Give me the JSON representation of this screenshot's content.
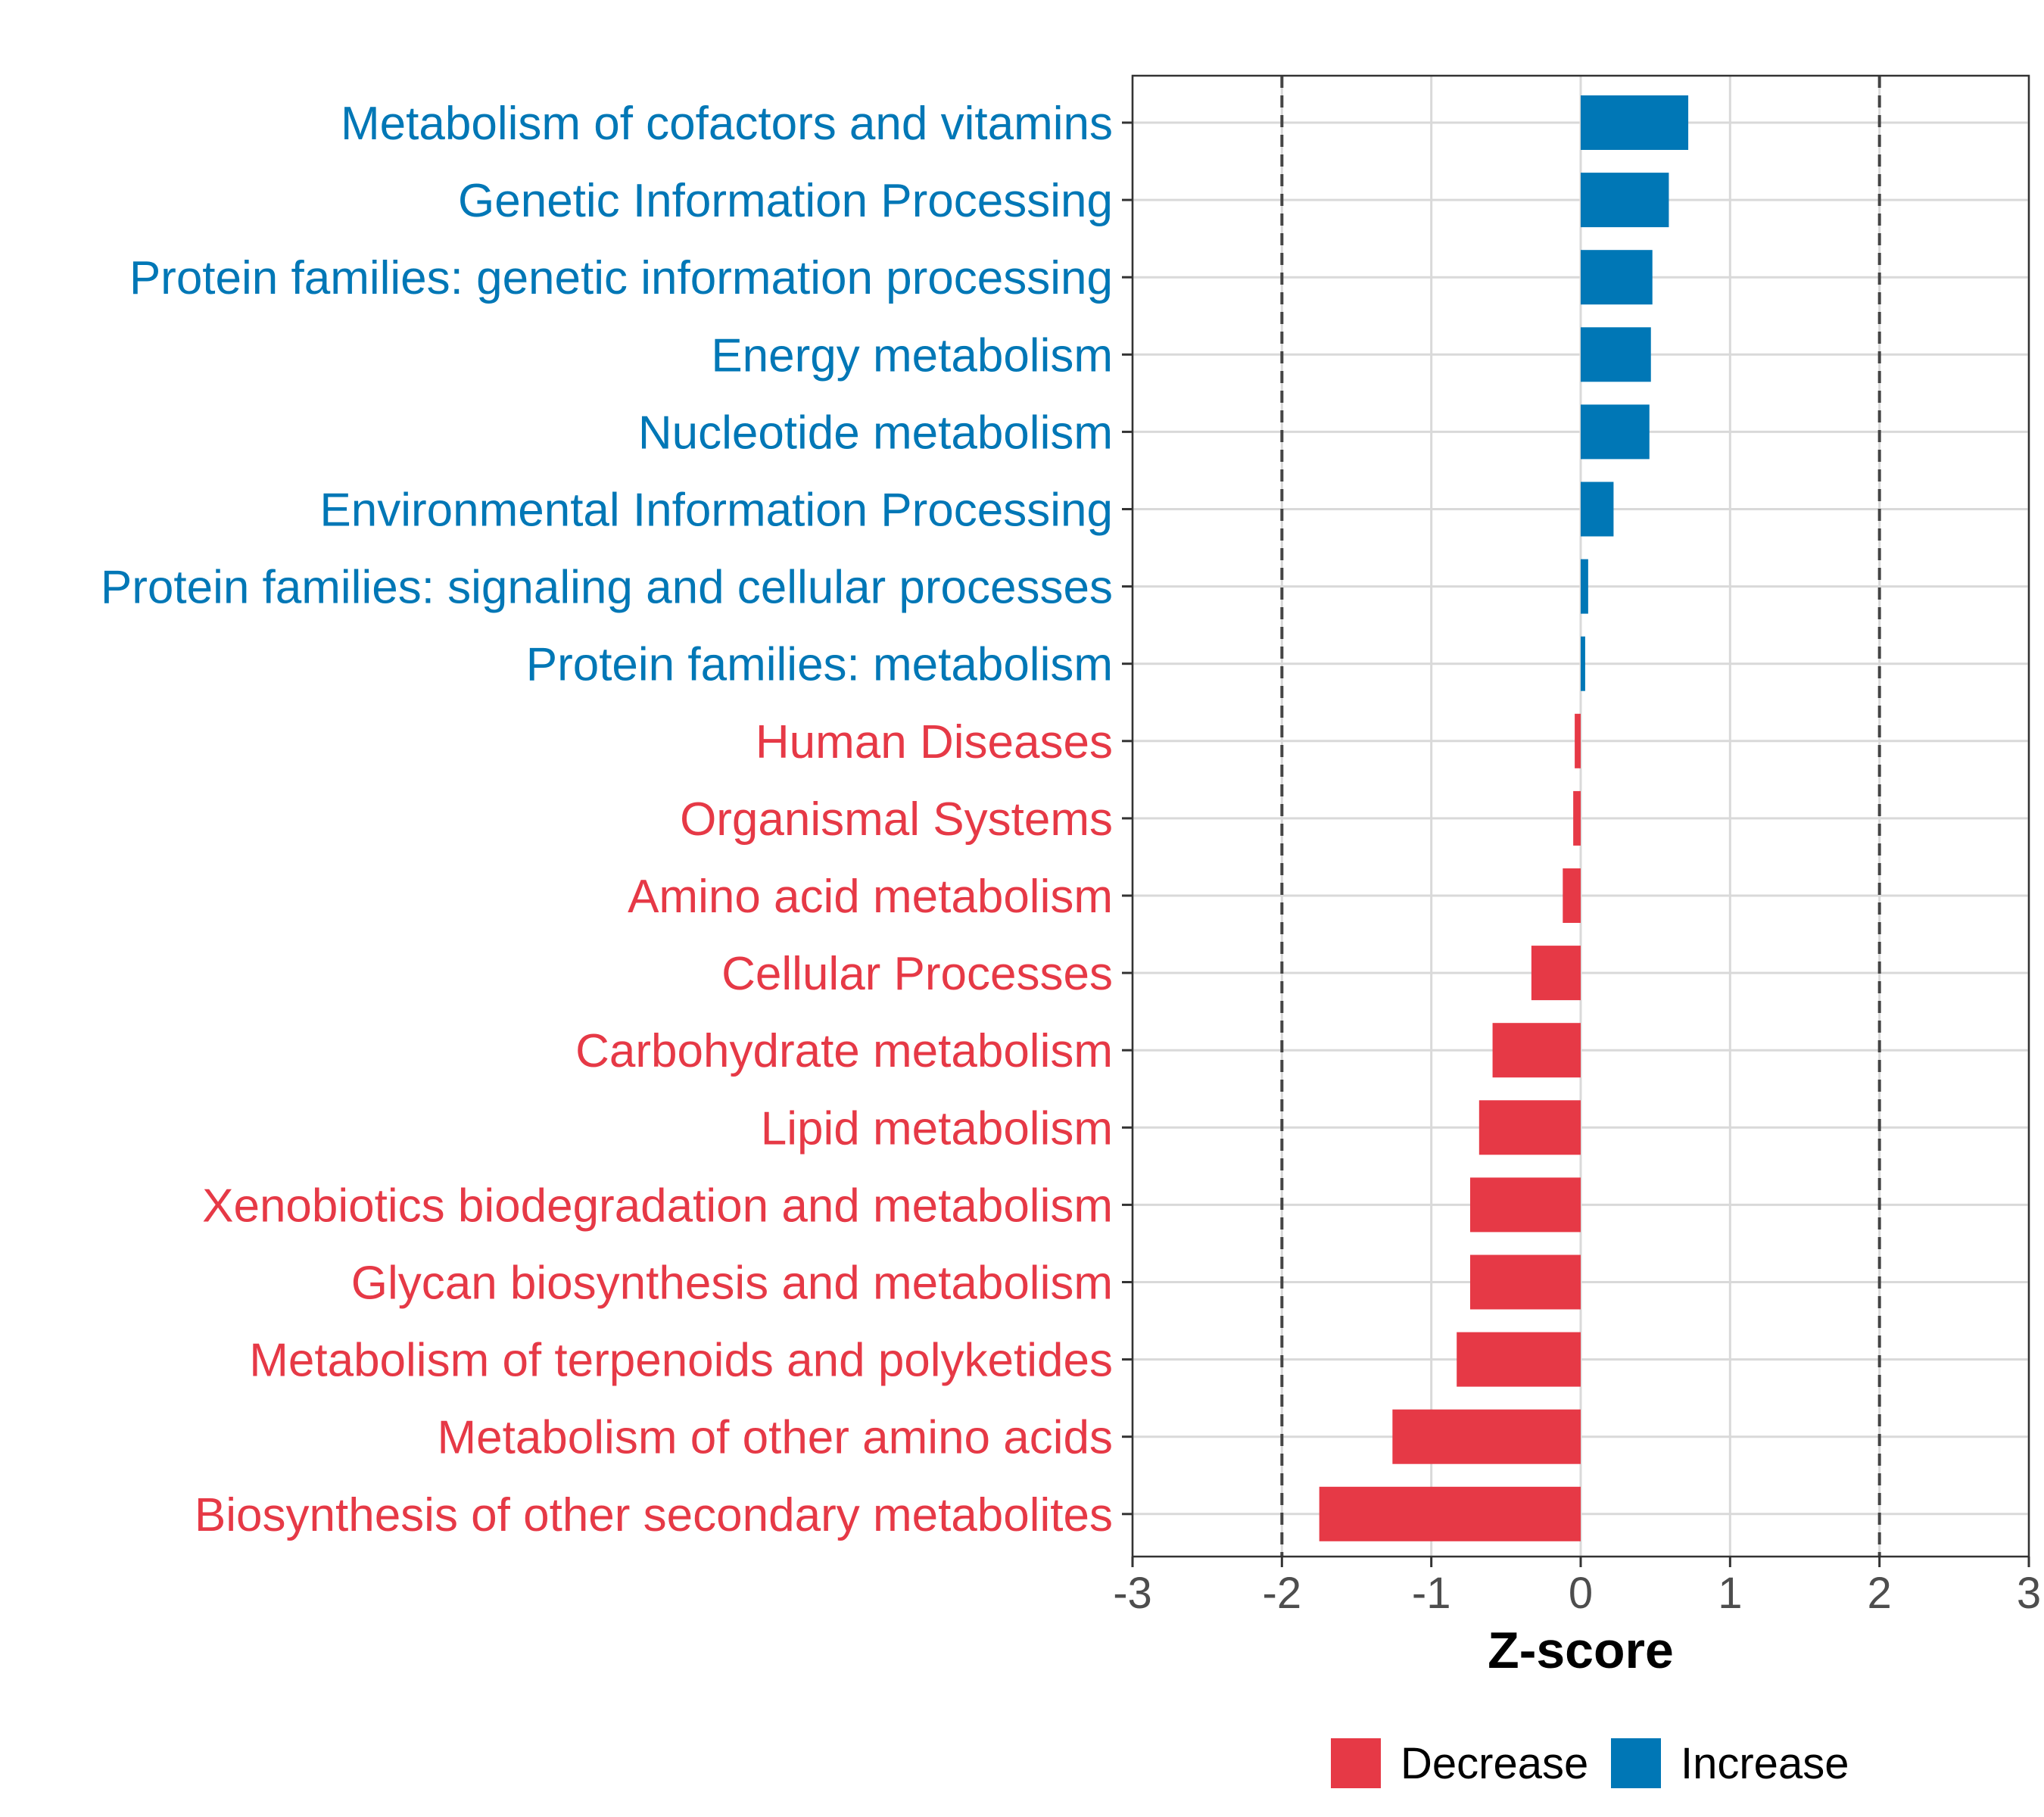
{
  "chart_data": {
    "type": "bar",
    "orientation": "horizontal",
    "xlabel": "Z-score",
    "ylabel": "",
    "xlim": [
      -3,
      3
    ],
    "x_ticks": [
      "-3",
      "-2",
      "-1",
      "0",
      "1",
      "2",
      "3"
    ],
    "x_tick_values": [
      -3,
      -2,
      -1,
      0,
      1,
      2,
      3
    ],
    "reference_lines": [
      -2,
      2
    ],
    "grid": true,
    "categories": [
      "Metabolism of cofactors and vitamins",
      "Genetic Information Processing",
      "Protein families: genetic information processing",
      "Energy metabolism",
      "Nucleotide metabolism",
      "Environmental Information Processing",
      "Protein families: signaling and cellular processes",
      "Protein families: metabolism",
      "Human Diseases",
      "Organismal Systems",
      "Amino acid metabolism",
      "Cellular Processes",
      "Carbohydrate metabolism",
      "Lipid metabolism",
      "Xenobiotics biodegradation and metabolism",
      "Glycan biosynthesis and metabolism",
      "Metabolism of terpenoids and polyketides",
      "Metabolism of other amino acids",
      "Biosynthesis of other secondary metabolites"
    ],
    "values": [
      0.72,
      0.59,
      0.48,
      0.47,
      0.46,
      0.22,
      0.05,
      0.03,
      -0.04,
      -0.05,
      -0.12,
      -0.33,
      -0.59,
      -0.68,
      -0.74,
      -0.74,
      -0.83,
      -1.26,
      -1.75
    ],
    "groups": [
      "Increase",
      "Increase",
      "Increase",
      "Increase",
      "Increase",
      "Increase",
      "Increase",
      "Increase",
      "Decrease",
      "Decrease",
      "Decrease",
      "Decrease",
      "Decrease",
      "Decrease",
      "Decrease",
      "Decrease",
      "Decrease",
      "Decrease",
      "Decrease"
    ],
    "legend": [
      {
        "label": "Decrease",
        "color": "#E63946"
      },
      {
        "label": "Increase",
        "color": "#0077B6"
      }
    ],
    "legend_position": "bottom"
  }
}
